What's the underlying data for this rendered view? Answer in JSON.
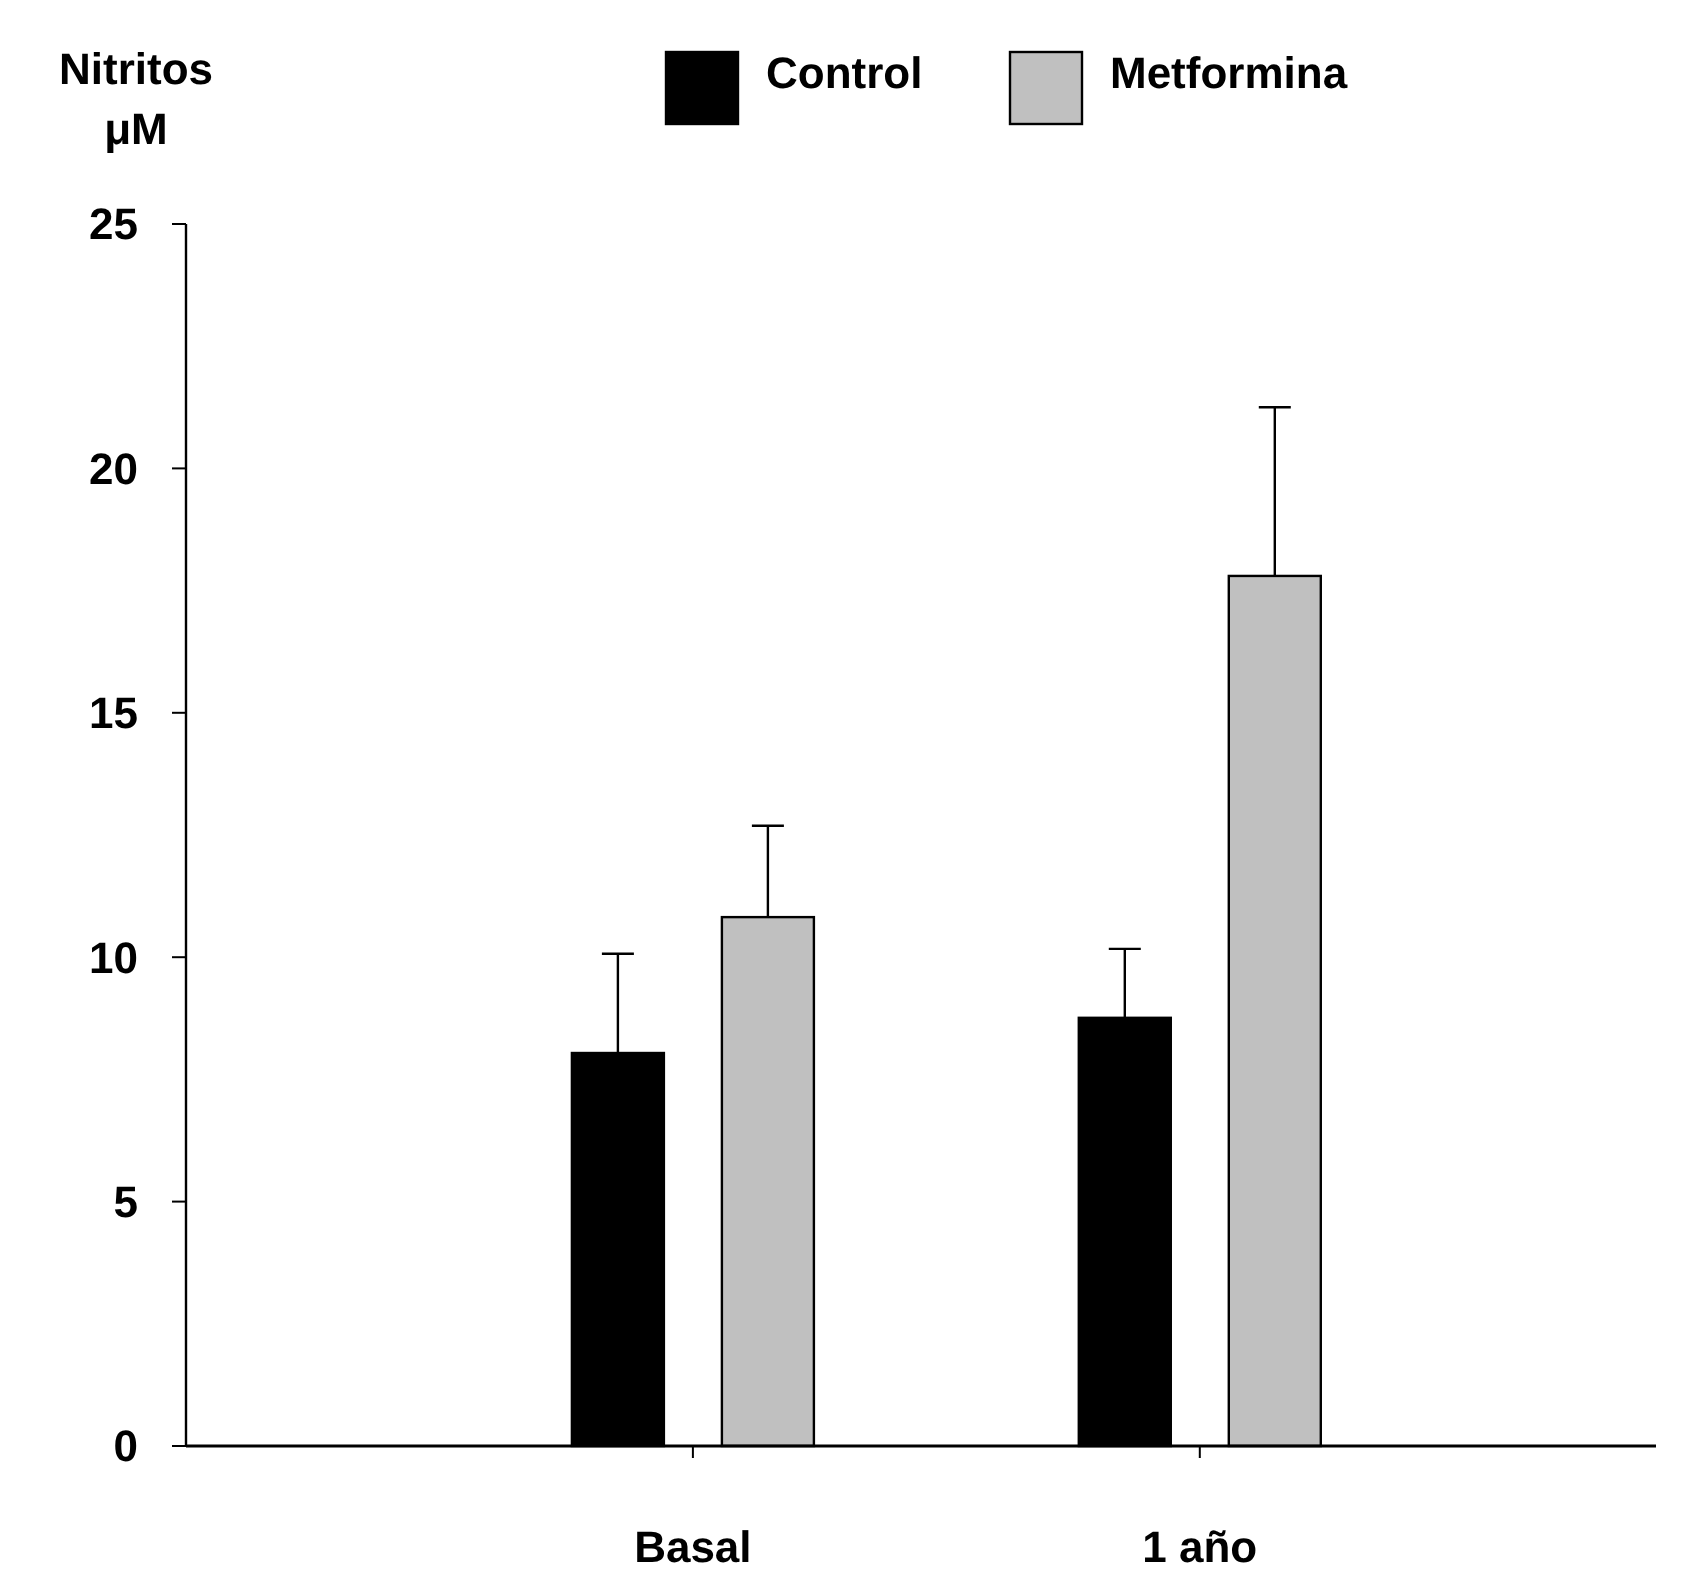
{
  "chart_data": {
    "type": "bar",
    "ylabel": "Nitritos μM",
    "categories": [
      "Basal",
      "1 año"
    ],
    "series": [
      {
        "name": "Control",
        "color": "#000000",
        "values": [
          8.04,
          8.76
        ],
        "errors": [
          [
            8.04,
            10.07
          ],
          [
            8.76,
            10.17
          ]
        ]
      },
      {
        "name": "Metformina",
        "color": "#c0c0c0",
        "values": [
          10.82,
          17.8
        ],
        "errors": [
          [
            10.82,
            12.69
          ],
          [
            17.8,
            21.25
          ]
        ]
      }
    ],
    "ylim": [
      0,
      25
    ],
    "yticks": [
      0,
      5,
      10,
      15,
      20,
      25
    ],
    "legend": "top",
    "grid": false
  }
}
